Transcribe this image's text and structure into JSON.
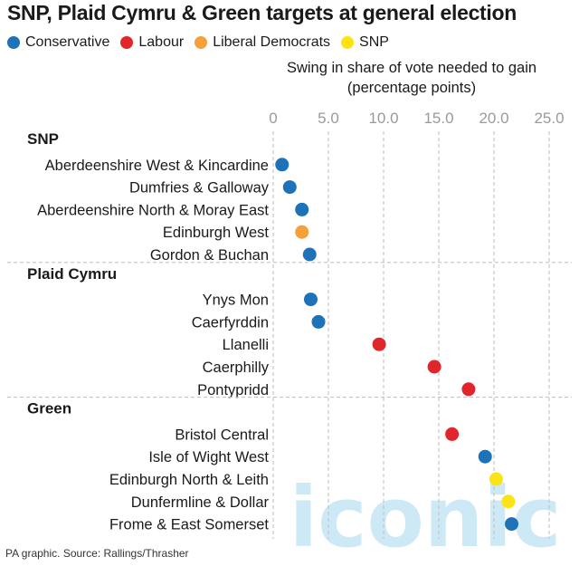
{
  "title": "SNP, Plaid Cymru & Green targets at general election",
  "source": "PA graphic. Source: Rallings/Thrasher",
  "watermark": "iconic",
  "colors": {
    "Conservative": "#1d72b8",
    "Labour": "#e0262b",
    "Liberal Democrats": "#f5a03b",
    "SNP": "#fbe316",
    "Current": "#c8c8c8",
    "grid": "#bdbdbd",
    "axis_text": "#9a9a9a",
    "watermark": "#a7d8f0"
  },
  "legend": [
    {
      "label": "Conservative",
      "color": "#1d72b8"
    },
    {
      "label": "Labour",
      "color": "#e0262b"
    },
    {
      "label": "Liberal Democrats",
      "color": "#f5a03b"
    },
    {
      "label": "SNP",
      "color": "#fbe316"
    }
  ],
  "chart_data": {
    "type": "scatter",
    "title": "SNP, Plaid Cymru & Green targets at general election",
    "xlabel": "Swing in share of vote needed to gain (percentage points)",
    "xlabel_lines": [
      "Swing in share of vote needed to gain",
      "(percentage points)"
    ],
    "xlim": [
      0,
      25
    ],
    "xticks": [
      0,
      5,
      10,
      15,
      20,
      25
    ],
    "xtick_labels": [
      "0",
      "5.0",
      "10.0",
      "15.0",
      "20.0",
      "25.0"
    ],
    "grid": true,
    "groups": [
      {
        "name": "SNP",
        "rows": [
          {
            "seat": "Aberdeenshire West & Kincardine",
            "party": "Conservative",
            "value": 0.8
          },
          {
            "seat": "Dumfries & Galloway",
            "party": "Conservative",
            "value": 1.5
          },
          {
            "seat": "Aberdeenshire North & Moray East",
            "party": "Conservative",
            "value": 2.6
          },
          {
            "seat": "Edinburgh West",
            "party": "Liberal Democrats",
            "value": 2.6
          },
          {
            "seat": "Gordon & Buchan",
            "party": "Conservative",
            "value": 3.3
          }
        ]
      },
      {
        "name": "Plaid Cymru",
        "rows": [
          {
            "seat": "Ynys Mon",
            "party": "Conservative",
            "value": 3.4
          },
          {
            "seat": "Caerfyrddin",
            "party": "Conservative",
            "value": 4.1
          },
          {
            "seat": "Llanelli",
            "party": "Labour",
            "value": 9.6
          },
          {
            "seat": "Caerphilly",
            "party": "Labour",
            "value": 14.6
          },
          {
            "seat": "Pontypridd",
            "party": "Labour",
            "value": 17.7
          }
        ]
      },
      {
        "name": "Green",
        "rows": [
          {
            "seat": "Bristol Central",
            "party": "Labour",
            "value": 16.2
          },
          {
            "seat": "Isle of Wight West",
            "party": "Conservative",
            "value": 19.2
          },
          {
            "seat": "Edinburgh North & Leith",
            "party": "SNP",
            "value": 20.2
          },
          {
            "seat": "Dunfermline & Dollar",
            "party": "SNP",
            "value": 21.3
          },
          {
            "seat": "Frome & East Somerset",
            "party": "Conservative",
            "value": 21.6
          }
        ]
      }
    ]
  }
}
